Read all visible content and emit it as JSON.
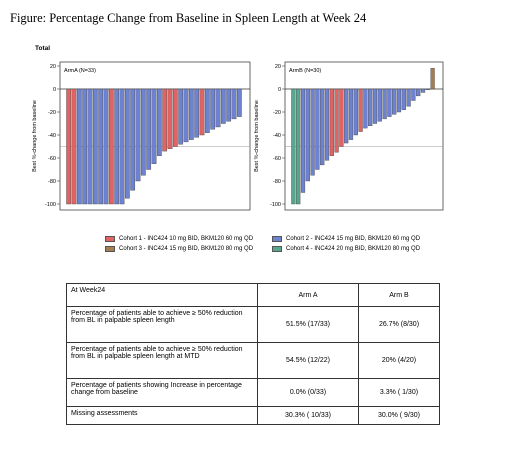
{
  "figure": {
    "title": "Figure: Percentage Change from Baseline in Spleen Length at Week 24",
    "total_label": "Total"
  },
  "colors": {
    "cohort1": "#e06464",
    "cohort2": "#6e82d2",
    "cohort3": "#a67c52",
    "cohort4": "#5aa590"
  },
  "chart_data": [
    {
      "type": "bar",
      "panel_label": "ArmA (N=33)",
      "ylabel": "Best %-change from baseline",
      "ylim": [
        -100,
        20
      ],
      "yticks": [
        20,
        0,
        -20,
        -40,
        -60,
        -80,
        -100
      ],
      "reference_line": -50,
      "values": [
        -100,
        -100,
        -100,
        -100,
        -100,
        -100,
        -100,
        -100,
        -100,
        -100,
        -100,
        -95,
        -88,
        -80,
        -75,
        -70,
        -65,
        -58,
        -54,
        -52,
        -50,
        -48,
        -46,
        -44,
        -42,
        -40,
        -38,
        -35,
        -33,
        -30,
        -28,
        -26,
        -24
      ],
      "cohorts": [
        1,
        1,
        2,
        2,
        2,
        2,
        2,
        2,
        1,
        2,
        2,
        2,
        2,
        2,
        2,
        2,
        2,
        2,
        1,
        1,
        1,
        2,
        2,
        2,
        2,
        1,
        2,
        2,
        2,
        2,
        2,
        2,
        2
      ]
    },
    {
      "type": "bar",
      "panel_label": "ArmB (N=30)",
      "ylabel": "Best %-change from baseline",
      "ylim": [
        -100,
        20
      ],
      "yticks": [
        20,
        0,
        -20,
        -40,
        -60,
        -80,
        -100
      ],
      "reference_line": -50,
      "values": [
        -100,
        -100,
        -90,
        -80,
        -75,
        -70,
        -66,
        -62,
        -58,
        -55,
        -50,
        -47,
        -44,
        -40,
        -37,
        -34,
        -32,
        -30,
        -28,
        -26,
        -24,
        -22,
        -20,
        -18,
        -15,
        -10,
        -6,
        -3,
        0,
        18
      ],
      "cohorts": [
        4,
        4,
        2,
        2,
        2,
        2,
        2,
        2,
        1,
        1,
        1,
        2,
        2,
        2,
        1,
        2,
        2,
        2,
        2,
        2,
        2,
        2,
        2,
        2,
        2,
        2,
        2,
        2,
        2,
        3
      ]
    }
  ],
  "legend": [
    {
      "label": "Cohort 1 - INC424 10 mg BID, BKM120 60 mg QD",
      "color_key": "cohort1"
    },
    {
      "label": "Cohort 2 - INC424 15 mg BID, BKM120 60 mg QD",
      "color_key": "cohort2"
    },
    {
      "label": "Cohort 3 - INC424 15 mg BID, BKM120 80 mg QD",
      "color_key": "cohort3"
    },
    {
      "label": "Cohort 4 - INC424 20 mg BID, BKM120 80 mg QD",
      "color_key": "cohort4"
    }
  ],
  "table": {
    "headers": [
      "At Week24",
      "Arm A",
      "Arm B"
    ],
    "rows": [
      [
        "Percentage of patients able to achieve ≥ 50% reduction from BL in palpable spleen length",
        "51.5% (17/33)",
        "26.7% (8/30)"
      ],
      [
        "Percentage of patients able to achieve ≥ 50% reduction from BL in palpable spleen length at MTD",
        "54.5% (12/22)",
        "20% (4/20)"
      ],
      [
        "Percentage of patients showing Increase in percentage change from baseline",
        "0.0% (0/33)",
        "3.3% ( 1/30)"
      ],
      [
        "Missing assessments",
        "30.3% ( 10/33)",
        "30.0% ( 9/30)"
      ]
    ]
  }
}
